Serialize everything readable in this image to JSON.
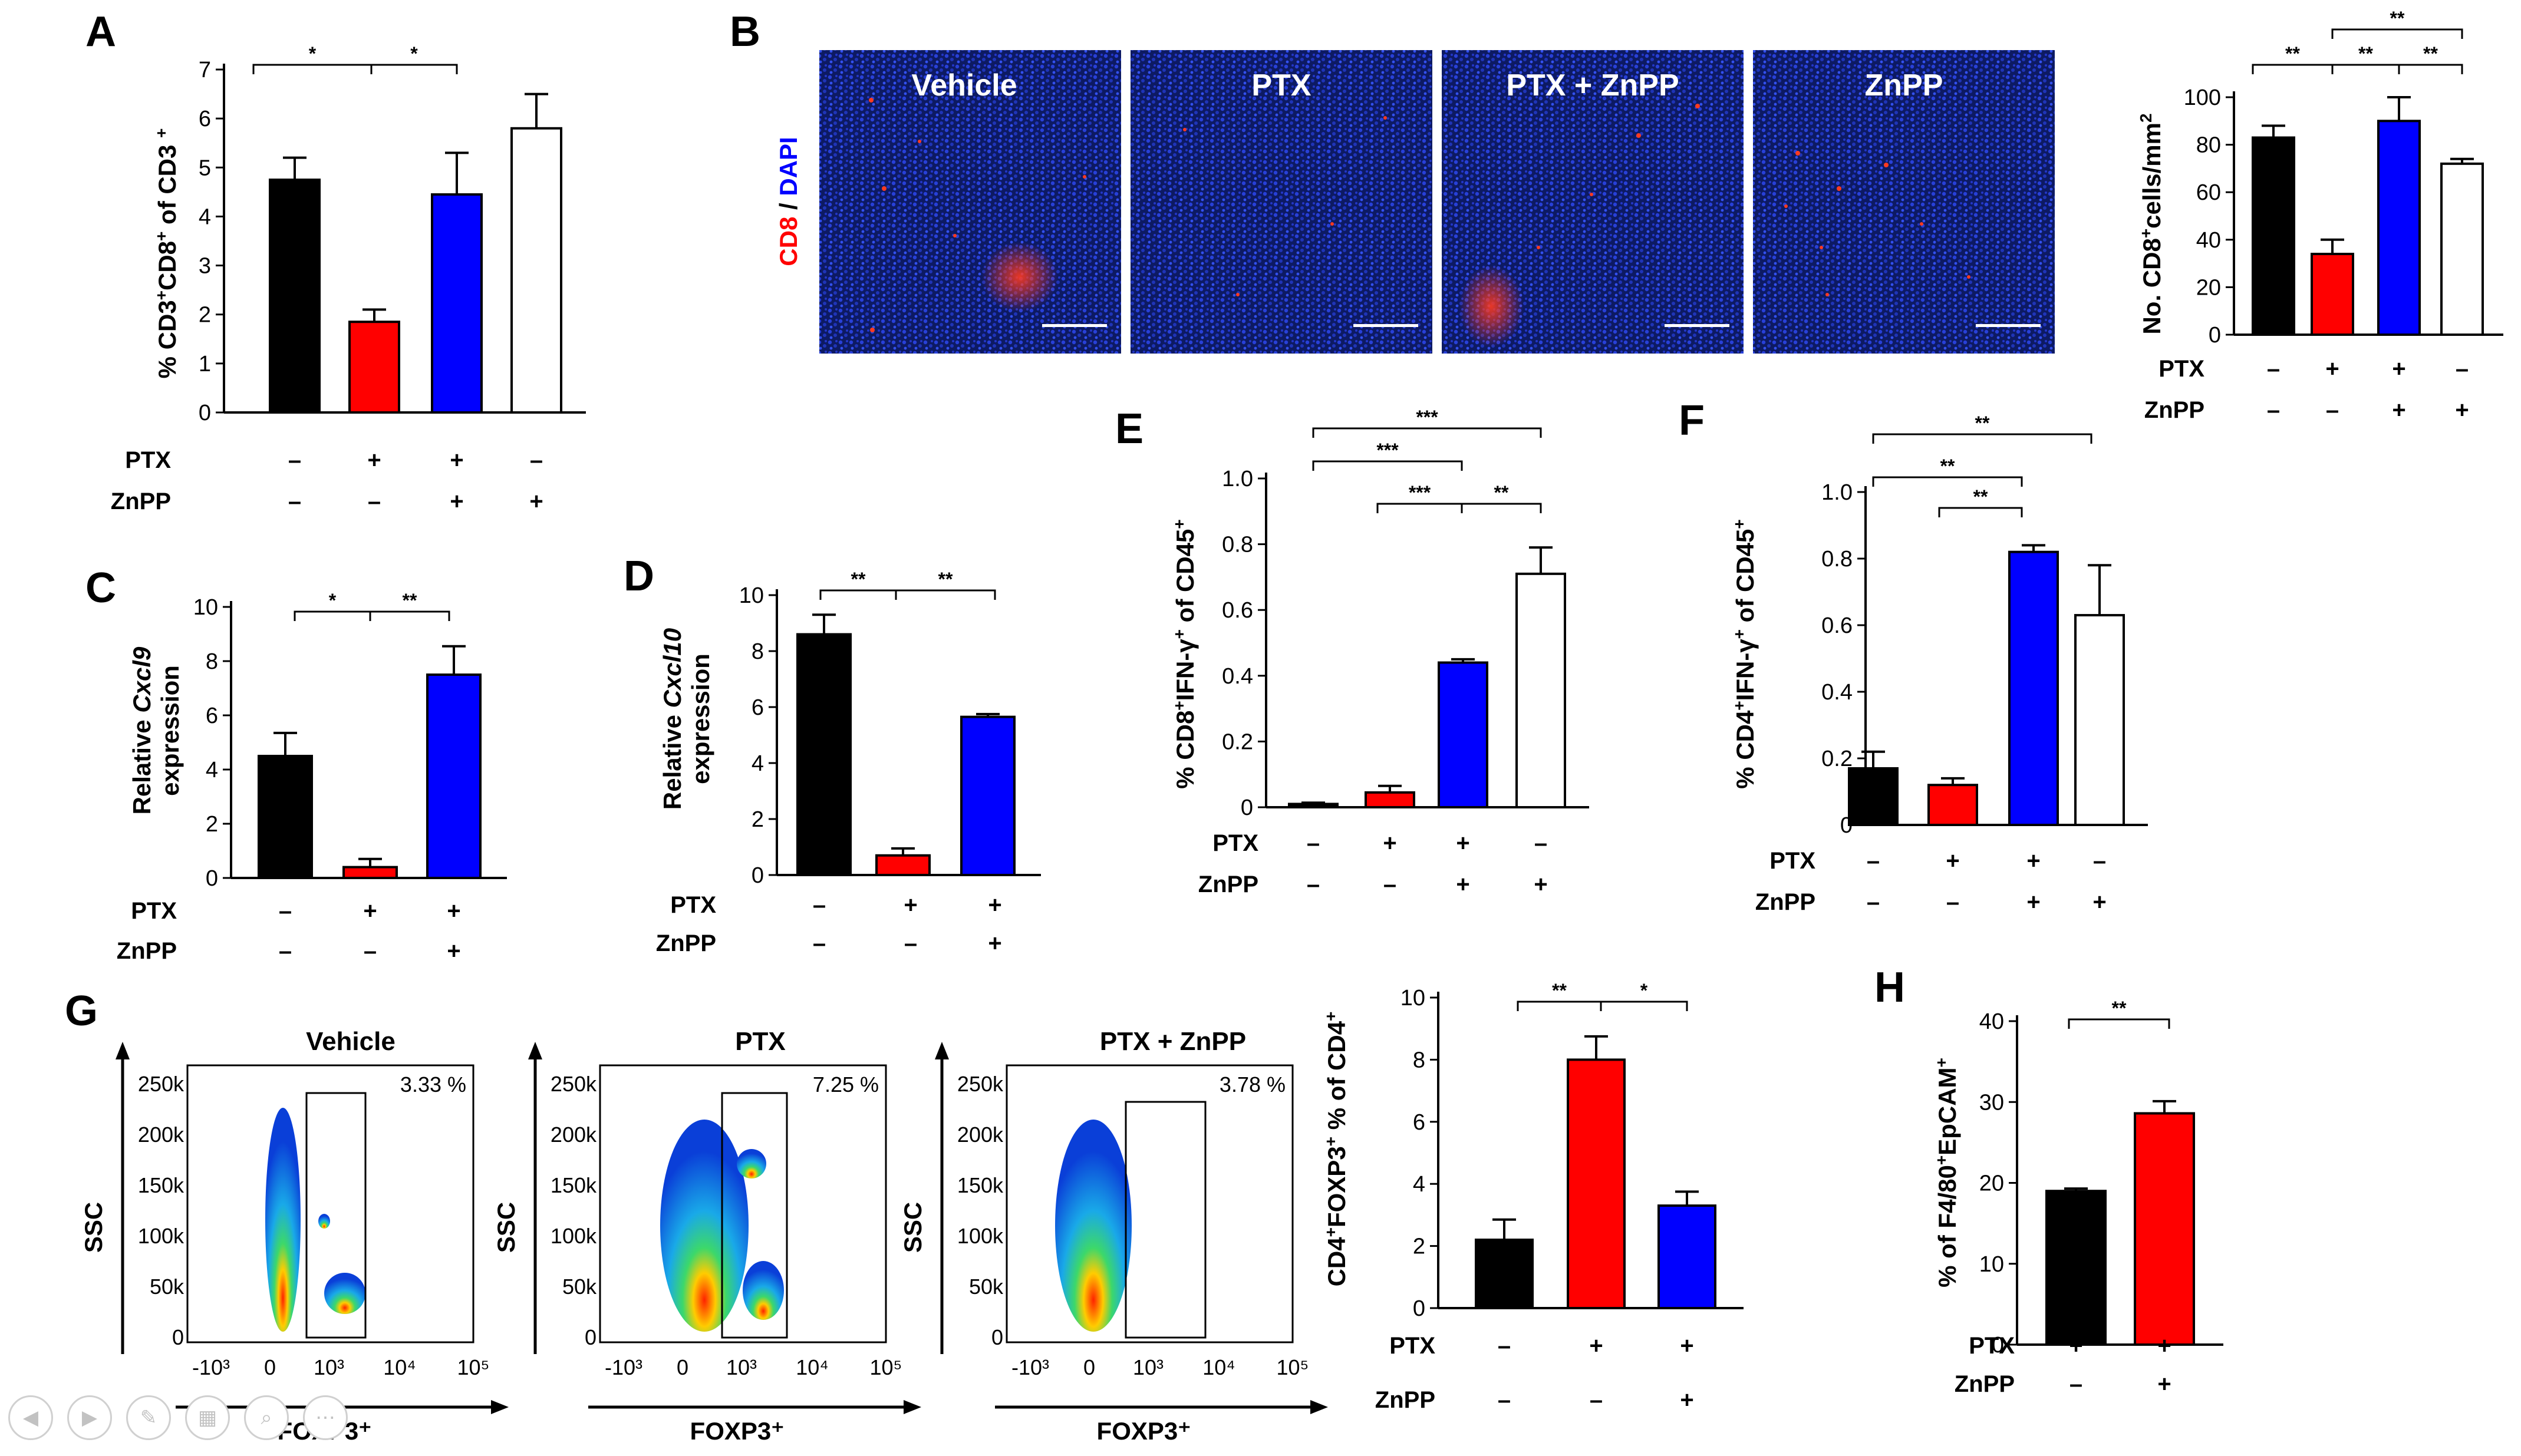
{
  "nav": {
    "prev": "◀",
    "next": "▶",
    "pen": "✎",
    "slides": "▦",
    "zoom": "⌕",
    "more": "⋯"
  },
  "colors": {
    "black": "#000000",
    "red": "#ff0000",
    "blue": "#0000ff",
    "white": "#ffffff"
  },
  "panels": {
    "A": {
      "letter": "A",
      "ylabel_parts": [
        "% CD3",
        "+",
        "CD8",
        "+",
        " of CD3 ",
        "+"
      ],
      "row_labels": [
        "PTX",
        "ZnPP"
      ],
      "signs": [
        [
          "–",
          "+",
          "+",
          "–"
        ],
        [
          "–",
          "–",
          "+",
          "+"
        ]
      ],
      "sig": [
        "*",
        "*"
      ],
      "chart_data": {
        "type": "bar",
        "ylim": [
          0,
          7
        ],
        "yticks": [
          "0",
          "1",
          "2",
          "3",
          "4",
          "5",
          "6",
          "7"
        ],
        "values": [
          4.75,
          1.85,
          4.45,
          5.8
        ],
        "errors": [
          0.45,
          0.25,
          0.85,
          0.7
        ],
        "colors": [
          "#000000",
          "#ff0000",
          "#0000ff",
          "#ffffff"
        ]
      }
    },
    "B": {
      "letter": "B",
      "micro_titles": [
        "Vehicle",
        "PTX",
        "PTX + ZnPP",
        "ZnPP"
      ],
      "side_label_cd8": "CD8",
      "side_label_slash": " / ",
      "side_label_dapi": "DAPI",
      "ylabel_parts": [
        "No. CD8",
        "+",
        "cells/mm",
        "2"
      ],
      "row_labels": [
        "PTX",
        "ZnPP"
      ],
      "signs": [
        [
          "–",
          "+",
          "+",
          "–"
        ],
        [
          "–",
          "–",
          "+",
          "+"
        ]
      ],
      "sig": [
        "**",
        "**",
        "**",
        "**"
      ],
      "chart_data": {
        "type": "bar",
        "ylim": [
          0,
          100
        ],
        "yticks": [
          "0",
          "20",
          "40",
          "60",
          "80",
          "100"
        ],
        "values": [
          83,
          34,
          90,
          72
        ],
        "errors": [
          5,
          6,
          10,
          2
        ],
        "colors": [
          "#000000",
          "#ff0000",
          "#0000ff",
          "#ffffff"
        ]
      }
    },
    "C": {
      "letter": "C",
      "ylabel_line1_pre": "Relative ",
      "ylabel_line1_gene": "Cxcl9",
      "ylabel_line2": "expression",
      "row_labels": [
        "PTX",
        "ZnPP"
      ],
      "signs": [
        [
          "–",
          "+",
          "+"
        ],
        [
          "–",
          "–",
          "+"
        ]
      ],
      "sig": [
        "*",
        "**"
      ],
      "chart_data": {
        "type": "bar",
        "ylim": [
          0,
          10
        ],
        "yticks": [
          "0",
          "2",
          "4",
          "6",
          "8",
          "10"
        ],
        "values": [
          4.5,
          0.4,
          7.5
        ],
        "errors": [
          0.85,
          0.3,
          1.05
        ],
        "colors": [
          "#000000",
          "#ff0000",
          "#0000ff"
        ]
      }
    },
    "D": {
      "letter": "D",
      "ylabel_line1_pre": "Relative ",
      "ylabel_line1_gene": "Cxcl10",
      "ylabel_line2": "expression",
      "row_labels": [
        "PTX",
        "ZnPP"
      ],
      "signs": [
        [
          "–",
          "+",
          "+"
        ],
        [
          "–",
          "–",
          "+"
        ]
      ],
      "sig": [
        "**",
        "**"
      ],
      "chart_data": {
        "type": "bar",
        "ylim": [
          0,
          10
        ],
        "yticks": [
          "0",
          "2",
          "4",
          "6",
          "8",
          "10"
        ],
        "values": [
          8.6,
          0.7,
          5.65
        ],
        "errors": [
          0.7,
          0.25,
          0.1
        ],
        "colors": [
          "#000000",
          "#ff0000",
          "#0000ff"
        ]
      }
    },
    "E": {
      "letter": "E",
      "ylabel_parts": [
        "% CD8",
        "+",
        "IFN-γ",
        "+",
        " of CD45",
        "+"
      ],
      "row_labels": [
        "PTX",
        "ZnPP"
      ],
      "signs": [
        [
          "–",
          "+",
          "+",
          "–"
        ],
        [
          "–",
          "–",
          "+",
          "+"
        ]
      ],
      "sig": [
        "***",
        "***",
        "***",
        "**"
      ],
      "chart_data": {
        "type": "bar",
        "ylim": [
          0,
          1.0
        ],
        "yticks": [
          "0",
          "0.2",
          "0.4",
          "0.6",
          "0.8",
          "1.0"
        ],
        "values": [
          0.01,
          0.045,
          0.44,
          0.71
        ],
        "errors": [
          0.004,
          0.02,
          0.01,
          0.08
        ],
        "colors": [
          "#000000",
          "#ff0000",
          "#0000ff",
          "#ffffff"
        ]
      }
    },
    "F": {
      "letter": "F",
      "ylabel_parts": [
        "% CD4",
        "+",
        "IFN-γ",
        "+",
        " of CD45",
        "+"
      ],
      "row_labels": [
        "PTX",
        "ZnPP"
      ],
      "signs": [
        [
          "–",
          "+",
          "+",
          "–"
        ],
        [
          "–",
          "–",
          "+",
          "+"
        ]
      ],
      "sig": [
        "**",
        "**",
        "**"
      ],
      "chart_data": {
        "type": "bar",
        "ylim": [
          0,
          1.0
        ],
        "yticks": [
          "0",
          "0.2",
          "0.4",
          "0.6",
          "0.8",
          "1.0"
        ],
        "values": [
          0.17,
          0.12,
          0.82,
          0.63
        ],
        "errors": [
          0.05,
          0.02,
          0.02,
          0.15
        ],
        "colors": [
          "#000000",
          "#ff0000",
          "#0000ff",
          "#ffffff"
        ]
      }
    },
    "G": {
      "letter": "G",
      "flow_titles": [
        "Vehicle",
        "PTX",
        "PTX + ZnPP"
      ],
      "gate_values": [
        "3.33 %",
        "7.25 %",
        "3.78 %"
      ],
      "flow_y_axis": "SSC",
      "flow_x_axis": "FOXP3⁺",
      "flow_yticks": [
        "250k",
        "200k",
        "150k",
        "100k",
        "50k",
        "0"
      ],
      "flow_xticks": [
        "-10³",
        "0",
        "10³",
        "10⁴",
        "10⁵"
      ],
      "bar_ylabel_parts": [
        "CD4",
        "+",
        "FOXP3",
        "+",
        " % of CD4",
        "+"
      ],
      "row_labels": [
        "PTX",
        "ZnPP"
      ],
      "signs": [
        [
          "–",
          "+",
          "+"
        ],
        [
          "–",
          "–",
          "+"
        ]
      ],
      "sig": [
        "**",
        "*"
      ],
      "chart_data": {
        "type": "bar",
        "ylim": [
          0,
          10
        ],
        "yticks": [
          "0",
          "2",
          "4",
          "6",
          "8",
          "10"
        ],
        "values": [
          2.2,
          8.0,
          3.3
        ],
        "errors": [
          0.65,
          0.75,
          0.45
        ],
        "colors": [
          "#000000",
          "#ff0000",
          "#0000ff"
        ]
      }
    },
    "H": {
      "letter": "H",
      "ylabel_parts": [
        "% of F4/80",
        "+",
        "EpCAM",
        "+"
      ],
      "row_labels": [
        "PTX",
        "ZnPP"
      ],
      "signs": [
        [
          "+",
          "+"
        ],
        [
          "–",
          "+"
        ]
      ],
      "sig": [
        "**"
      ],
      "chart_data": {
        "type": "bar",
        "ylim": [
          0,
          40
        ],
        "yticks": [
          "0",
          "10",
          "20",
          "30",
          "40"
        ],
        "values": [
          19,
          28.6
        ],
        "errors": [
          0.3,
          1.5
        ],
        "colors": [
          "#000000",
          "#ff0000"
        ]
      }
    }
  }
}
